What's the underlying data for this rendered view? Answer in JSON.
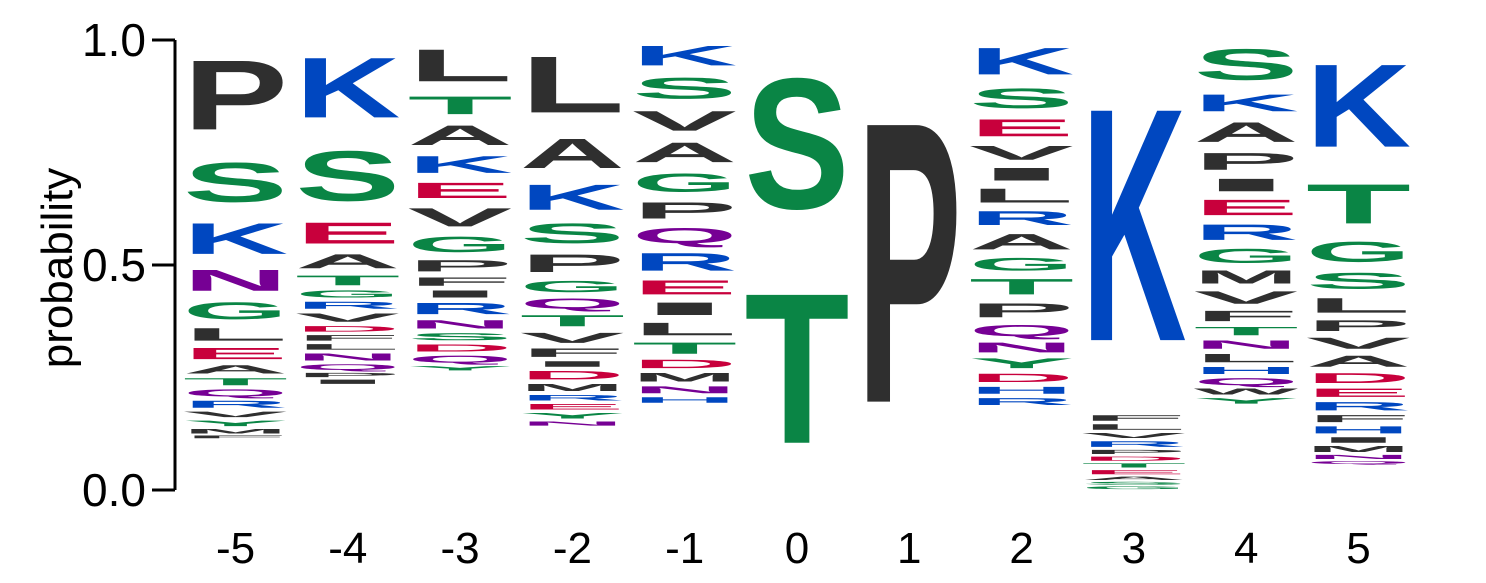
{
  "chart_data": {
    "type": "sequence-logo",
    "ylabel": "probability",
    "ylim": [
      0,
      1
    ],
    "yticks": [
      "0.0",
      "0.5",
      "1.0"
    ],
    "xticks": [
      "-5",
      "-4",
      "-3",
      "-2",
      "-1",
      "0",
      "1",
      "2",
      "3",
      "4",
      "5"
    ],
    "colors": {
      "hydrophobic": "#2f2f2f",
      "polar": "#0a8545",
      "basic": "#0047c0",
      "acidic": "#c8003c",
      "amide": "#760094"
    },
    "positions": [
      {
        "pos": "-5",
        "letters": [
          [
            "P",
            0.247
          ],
          [
            "S",
            0.14
          ],
          [
            "K",
            0.11
          ],
          [
            "N",
            0.075
          ],
          [
            "G",
            0.06
          ],
          [
            "L",
            0.045
          ],
          [
            "E",
            0.04
          ],
          [
            "A",
            0.03
          ],
          [
            "T",
            0.025
          ],
          [
            "Q",
            0.025
          ],
          [
            "R",
            0.025
          ],
          [
            "V",
            0.02
          ],
          [
            "Y",
            0.02
          ],
          [
            "M",
            0.015
          ],
          [
            "F",
            0.01
          ]
        ]
      },
      {
        "pos": "-4",
        "letters": [
          [
            "K",
            0.214
          ],
          [
            "S",
            0.178
          ],
          [
            "E",
            0.075
          ],
          [
            "A",
            0.05
          ],
          [
            "T",
            0.035
          ],
          [
            "G",
            0.025
          ],
          [
            "R",
            0.025
          ],
          [
            "V",
            0.03
          ],
          [
            "D",
            0.02
          ],
          [
            "F",
            0.02
          ],
          [
            "L",
            0.02
          ],
          [
            "N",
            0.025
          ],
          [
            "Q",
            0.02
          ],
          [
            "P",
            0.015
          ],
          [
            "I",
            0.015
          ]
        ]
      },
      {
        "pos": "-3",
        "letters": [
          [
            "L",
            0.114
          ],
          [
            "T",
            0.063
          ],
          [
            "A",
            0.07
          ],
          [
            "K",
            0.06
          ],
          [
            "E",
            0.055
          ],
          [
            "V",
            0.065
          ],
          [
            "G",
            0.055
          ],
          [
            "P",
            0.04
          ],
          [
            "F",
            0.03
          ],
          [
            "I",
            0.025
          ],
          [
            "R",
            0.04
          ],
          [
            "N",
            0.03
          ],
          [
            "S",
            0.025
          ],
          [
            "D",
            0.025
          ],
          [
            "Q",
            0.025
          ],
          [
            "Y",
            0.015
          ]
        ]
      },
      {
        "pos": "-2",
        "letters": [
          [
            "L",
            0.2
          ],
          [
            "A",
            0.105
          ],
          [
            "K",
            0.09
          ],
          [
            "S",
            0.07
          ],
          [
            "P",
            0.063
          ],
          [
            "G",
            0.04
          ],
          [
            "Q",
            0.036
          ],
          [
            "T",
            0.04
          ],
          [
            "V",
            0.036
          ],
          [
            "F",
            0.03
          ],
          [
            "I",
            0.02
          ],
          [
            "D",
            0.03
          ],
          [
            "M",
            0.025
          ],
          [
            "R",
            0.02
          ],
          [
            "E",
            0.02
          ],
          [
            "Y",
            0.02
          ],
          [
            "N",
            0.015
          ]
        ]
      },
      {
        "pos": "-1",
        "letters": [
          [
            "K",
            0.07
          ],
          [
            "S",
            0.075
          ],
          [
            "V",
            0.07
          ],
          [
            "A",
            0.07
          ],
          [
            "G",
            0.065
          ],
          [
            "P",
            0.058
          ],
          [
            "Q",
            0.054
          ],
          [
            "R",
            0.063
          ],
          [
            "E",
            0.05
          ],
          [
            "I",
            0.045
          ],
          [
            "L",
            0.045
          ],
          [
            "T",
            0.04
          ],
          [
            "D",
            0.03
          ],
          [
            "M",
            0.03
          ],
          [
            "N",
            0.025
          ],
          [
            "H",
            0.02
          ]
        ]
      },
      {
        "pos": "0",
        "letters": [
          [
            "S",
            0.465
          ],
          [
            "T",
            0.535
          ]
        ]
      },
      {
        "pos": "1",
        "letters": [
          [
            "P",
            1.0
          ]
        ]
      },
      {
        "pos": "2",
        "letters": [
          [
            "K",
            0.095
          ],
          [
            "S",
            0.07
          ],
          [
            "E",
            0.061
          ],
          [
            "V",
            0.05
          ],
          [
            "I",
            0.045
          ],
          [
            "L",
            0.05
          ],
          [
            "R",
            0.05
          ],
          [
            "A",
            0.055
          ],
          [
            "G",
            0.045
          ],
          [
            "T",
            0.055
          ],
          [
            "P",
            0.05
          ],
          [
            "Q",
            0.04
          ],
          [
            "N",
            0.035
          ],
          [
            "Y",
            0.035
          ],
          [
            "D",
            0.03
          ],
          [
            "H",
            0.025
          ],
          [
            "R",
            0.025
          ]
        ]
      },
      {
        "pos": "3",
        "letters": [
          [
            "K",
            0.83
          ],
          [
            "F",
            0.02
          ],
          [
            "L",
            0.02
          ],
          [
            "V",
            0.018
          ],
          [
            "R",
            0.02
          ],
          [
            "P",
            0.015
          ],
          [
            "D",
            0.015
          ],
          [
            "T",
            0.015
          ],
          [
            "E",
            0.015
          ],
          [
            "A",
            0.012
          ],
          [
            "S",
            0.01
          ],
          [
            "G",
            0.01
          ]
        ]
      },
      {
        "pos": "4",
        "letters": [
          [
            "S",
            0.11
          ],
          [
            "K",
            0.06
          ],
          [
            "A",
            0.07
          ],
          [
            "P",
            0.06
          ],
          [
            "I",
            0.045
          ],
          [
            "E",
            0.055
          ],
          [
            "R",
            0.055
          ],
          [
            "G",
            0.05
          ],
          [
            "M",
            0.045
          ],
          [
            "V",
            0.045
          ],
          [
            "F",
            0.037
          ],
          [
            "T",
            0.03
          ],
          [
            "N",
            0.03
          ],
          [
            "L",
            0.03
          ],
          [
            "H",
            0.025
          ],
          [
            "Q",
            0.025
          ],
          [
            "W",
            0.02
          ],
          [
            "Y",
            0.02
          ]
        ]
      },
      {
        "pos": "5",
        "letters": [
          [
            "K",
            0.295
          ],
          [
            "T",
            0.14
          ],
          [
            "G",
            0.072
          ],
          [
            "S",
            0.057
          ],
          [
            "L",
            0.052
          ],
          [
            "P",
            0.038
          ],
          [
            "V",
            0.04
          ],
          [
            "A",
            0.04
          ],
          [
            "D",
            0.035
          ],
          [
            "E",
            0.03
          ],
          [
            "R",
            0.03
          ],
          [
            "F",
            0.025
          ],
          [
            "H",
            0.025
          ],
          [
            "I",
            0.02
          ],
          [
            "M",
            0.02
          ],
          [
            "N",
            0.015
          ],
          [
            "Q",
            0.01
          ]
        ]
      }
    ]
  }
}
